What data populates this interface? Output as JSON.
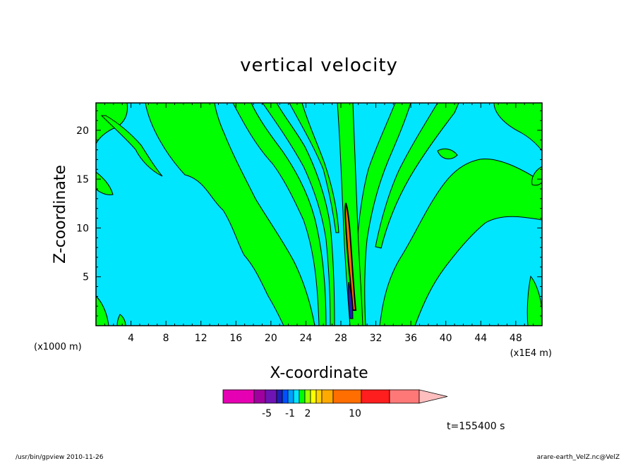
{
  "chart_data": {
    "type": "heatmap",
    "title": "vertical velocity",
    "xlabel": "X-coordinate",
    "ylabel": "Z-coordinate",
    "x_unit_left": "(x1000 m)",
    "x_unit_right": "(x1E4 m)",
    "xlim": [
      0,
      51
    ],
    "ylim": [
      0,
      22.8
    ],
    "x_ticks": [
      "4",
      "8",
      "12",
      "16",
      "20",
      "24",
      "28",
      "32",
      "36",
      "40",
      "44",
      "48"
    ],
    "y_ticks": [
      "5",
      "10",
      "15",
      "20"
    ],
    "time_label": "t=155400 s",
    "colorbar": {
      "colors": [
        "#e600b4",
        "#a000a0",
        "#6e14b4",
        "#1e1eb4",
        "#0050ff",
        "#00a0ff",
        "#00e6ff",
        "#00ff00",
        "#a0ff00",
        "#ffff00",
        "#ffd200",
        "#ffaa00",
        "#ff6e00",
        "#ff1e1e",
        "#ff7878",
        "#ffbebe"
      ],
      "tick_labels": [
        "-5",
        "-1",
        "2",
        "10"
      ]
    },
    "background_color": "#00e6ff",
    "positive_color": "#00ff00"
  },
  "footer": {
    "left": "/usr/bin/gpview   2010-11-26",
    "right": "arare-earth_VelZ.nc@VelZ"
  }
}
